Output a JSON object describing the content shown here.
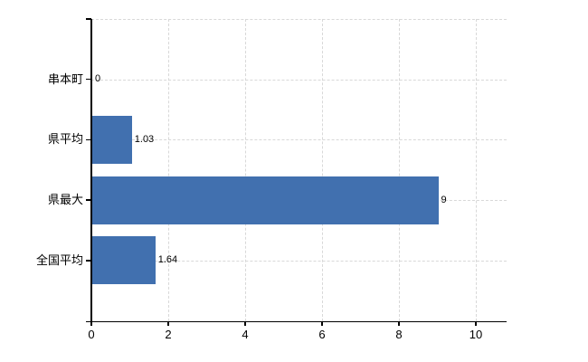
{
  "chart_data": {
    "type": "bar",
    "orientation": "horizontal",
    "title": "",
    "xlabel": "",
    "ylabel": "",
    "legend": "none",
    "grid": "on",
    "categories": [
      "串本町",
      "県平均",
      "県最大",
      "全国平均"
    ],
    "values": [
      0,
      1.03,
      9,
      1.64
    ],
    "value_labels": [
      "0",
      "1.03",
      "9",
      "1.64"
    ],
    "xlim": [
      0,
      10.8
    ],
    "xticks": [
      0,
      2,
      4,
      6,
      8,
      10
    ],
    "xtick_labels": [
      "0",
      "2",
      "4",
      "6",
      "8",
      "10"
    ],
    "colors": {
      "bar": "#4170af",
      "grid": "#d8d8d8",
      "axis": "#000000",
      "text": "#000000",
      "background": "#ffffff"
    }
  }
}
